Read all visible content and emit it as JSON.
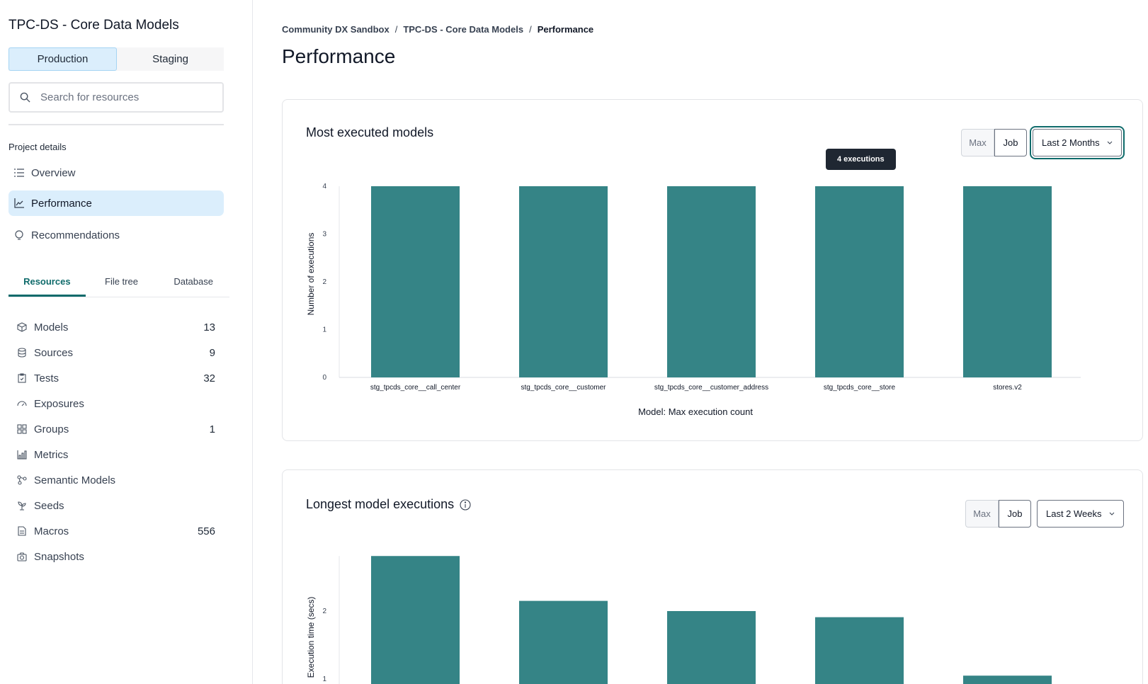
{
  "sidebar": {
    "project_title": "TPC-DS - Core Data Models",
    "environments": [
      "Production",
      "Staging"
    ],
    "active_environment": "Production",
    "search_placeholder": "Search for resources",
    "project_details_label": "Project details",
    "nav": [
      {
        "label": "Overview",
        "icon": "list-icon"
      },
      {
        "label": "Performance",
        "icon": "line-chart-icon",
        "active": true
      },
      {
        "label": "Recommendations",
        "icon": "lightbulb-icon"
      }
    ],
    "tabs": [
      {
        "label": "Resources",
        "active": true
      },
      {
        "label": "File tree"
      },
      {
        "label": "Database"
      }
    ],
    "resources": [
      {
        "label": "Models",
        "count": "13",
        "icon": "cube-icon"
      },
      {
        "label": "Sources",
        "count": "9",
        "icon": "database-icon"
      },
      {
        "label": "Tests",
        "count": "32",
        "icon": "clipboard-check-icon"
      },
      {
        "label": "Exposures",
        "count": "",
        "icon": "gauge-icon"
      },
      {
        "label": "Groups",
        "count": "1",
        "icon": "grid-icon"
      },
      {
        "label": "Metrics",
        "count": "",
        "icon": "bar-chart-icon"
      },
      {
        "label": "Semantic Models",
        "count": "",
        "icon": "nodes-icon"
      },
      {
        "label": "Seeds",
        "count": "",
        "icon": "sprout-icon"
      },
      {
        "label": "Macros",
        "count": "556",
        "icon": "file-text-icon"
      },
      {
        "label": "Snapshots",
        "count": "",
        "icon": "camera-icon"
      }
    ]
  },
  "breadcrumb": [
    "Community DX Sandbox",
    "TPC-DS - Core Data Models",
    "Performance"
  ],
  "page_title": "Performance",
  "colors": {
    "bar": "#358486",
    "accent": "#0f6b6b",
    "active_bg": "#dbeefc"
  },
  "cards": [
    {
      "title": "Most executed models",
      "toggle": [
        "Max",
        "Job"
      ],
      "range": "Last 2 Months",
      "tooltip": "4 executions"
    },
    {
      "title": "Longest model executions",
      "toggle": [
        "Max",
        "Job"
      ],
      "range": "Last 2 Weeks",
      "info_icon": "info-icon"
    }
  ],
  "chart_data": [
    {
      "type": "bar",
      "title": "Most executed models",
      "xlabel": "Model: Max execution count",
      "ylabel": "Number of executions",
      "categories": [
        "stg_tpcds_core__call_center",
        "stg_tpcds_core__customer",
        "stg_tpcds_core__customer_address",
        "stg_tpcds_core__store",
        "stores.v2"
      ],
      "values": [
        4,
        4,
        4,
        4,
        4
      ],
      "ylim": [
        0,
        4
      ],
      "yticks": [
        "0",
        "1",
        "2",
        "3",
        "4"
      ],
      "grid": false
    },
    {
      "type": "bar",
      "title": "Longest model executions",
      "ylabel": "Execution time (secs)",
      "values": [
        2.81,
        2.15,
        2.0,
        1.91,
        1.05
      ],
      "yticks": [
        "1",
        "2"
      ],
      "grid": false
    }
  ]
}
